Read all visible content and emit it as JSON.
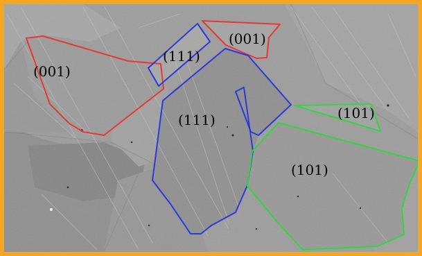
{
  "image": {
    "border_color": "#f5a623",
    "background_color": "#9a9a9a",
    "grain_outline_colors": {
      "red": "#e53935",
      "blue": "#2a3ad6",
      "green": "#33d640"
    }
  },
  "labels": {
    "grain_001_left": "(001)",
    "grain_001_top": "(001)",
    "grain_111_upper": "(111)",
    "grain_111_center": "(111)",
    "grain_101_right_small": "(101)",
    "grain_101_lower": "(101)"
  }
}
